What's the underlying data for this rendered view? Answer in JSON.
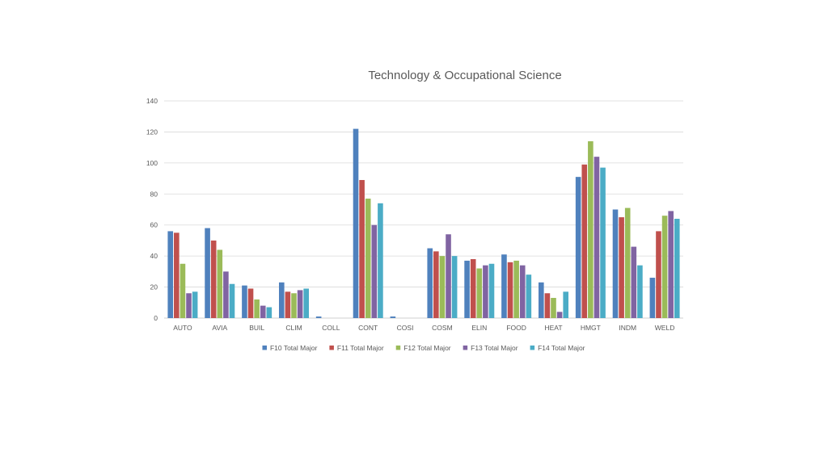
{
  "chart_data": {
    "type": "bar",
    "title": "Technology & Occupational Science",
    "xlabel": "",
    "ylabel": "",
    "ylim": [
      0,
      140
    ],
    "yticks": [
      0,
      20,
      40,
      60,
      80,
      100,
      120,
      140
    ],
    "grid": true,
    "legend_position": "bottom",
    "categories": [
      "AUTO",
      "AVIA",
      "BUIL",
      "CLIM",
      "COLL",
      "CONT",
      "COSI",
      "COSM",
      "ELIN",
      "FOOD",
      "HEAT",
      "HMGT",
      "INDM",
      "WELD"
    ],
    "series": [
      {
        "name": "F10 Total Major",
        "color": "#4f81bd",
        "values": [
          56,
          58,
          21,
          23,
          1,
          122,
          1,
          45,
          37,
          41,
          23,
          91,
          70,
          26
        ]
      },
      {
        "name": "F11 Total Major",
        "color": "#c0504d",
        "values": [
          55,
          50,
          19,
          17,
          0,
          89,
          0,
          43,
          38,
          36,
          16,
          99,
          65,
          56
        ]
      },
      {
        "name": "F12 Total Major",
        "color": "#9bbb59",
        "values": [
          35,
          44,
          12,
          16,
          0,
          77,
          0,
          40,
          32,
          37,
          13,
          114,
          71,
          66
        ]
      },
      {
        "name": "F13 Total Major",
        "color": "#8064a2",
        "values": [
          16,
          30,
          8,
          18,
          0,
          60,
          0,
          54,
          34,
          34,
          4,
          104,
          46,
          69
        ]
      },
      {
        "name": "F14 Total Major",
        "color": "#4bacc6",
        "values": [
          17,
          22,
          7,
          19,
          0,
          74,
          0,
          40,
          35,
          28,
          17,
          97,
          34,
          64
        ]
      }
    ]
  }
}
